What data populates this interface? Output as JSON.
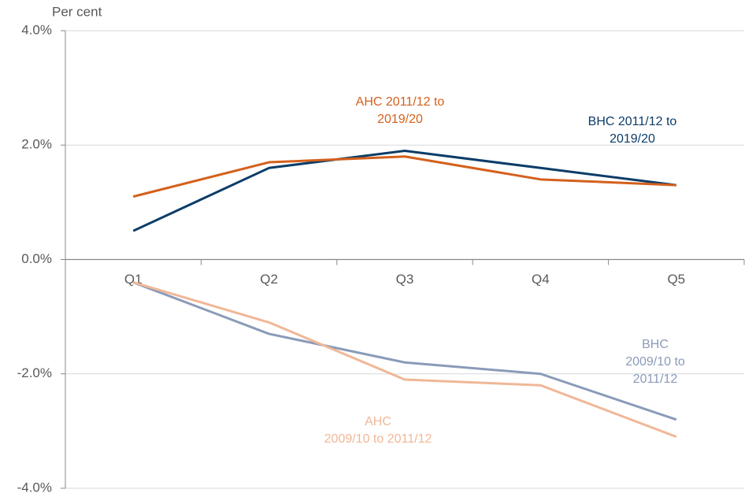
{
  "chart_data": {
    "type": "line",
    "y_label": "Per cent",
    "categories": [
      "Q1",
      "Q2",
      "Q3",
      "Q4",
      "Q5"
    ],
    "ylim": [
      -4,
      4
    ],
    "yticks": [
      {
        "value": -4,
        "label": "-4.0%"
      },
      {
        "value": -2,
        "label": "-2.0%"
      },
      {
        "value": 0,
        "label": "0.0%"
      },
      {
        "value": 2,
        "label": "2.0%"
      },
      {
        "value": 4,
        "label": "4.0%"
      }
    ],
    "grid": true,
    "series": [
      {
        "name": "BHC 2011/12 to 2019/20",
        "color": "#0b3c68",
        "values": [
          0.5,
          1.6,
          1.9,
          1.6,
          1.3
        ]
      },
      {
        "name": "AHC 2011/12 to\n2019/20",
        "color": "#d4601c",
        "values": [
          1.1,
          1.7,
          1.8,
          1.4,
          1.3
        ]
      },
      {
        "name": "BHC\n2009/10 to 2011/12",
        "color": "#8a9bb9",
        "values": [
          -0.4,
          -1.3,
          -1.8,
          -2.0,
          -2.8
        ]
      },
      {
        "name": "AHC\n2009/10 to 2011/12",
        "color": "#f0b797",
        "values": [
          -0.4,
          -1.1,
          -2.1,
          -2.2,
          -3.1
        ]
      }
    ]
  }
}
